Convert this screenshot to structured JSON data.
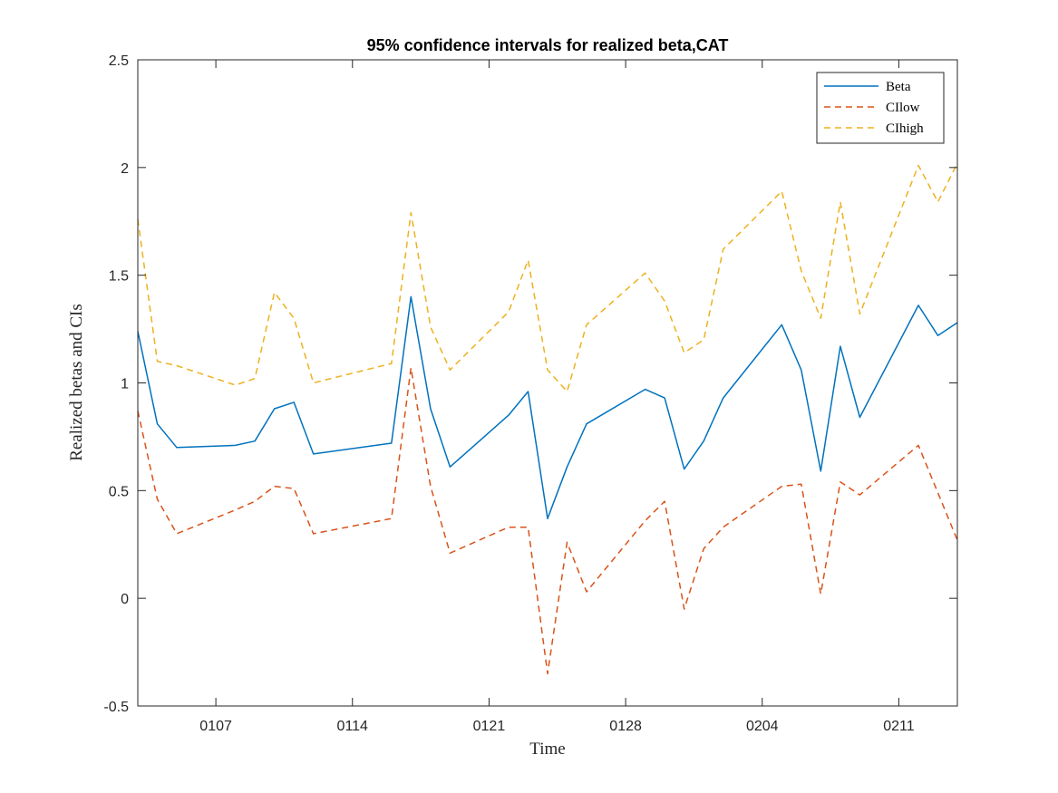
{
  "chart_data": {
    "type": "line",
    "title": "95% confidence intervals for realized beta,CAT",
    "xlabel": "Time",
    "ylabel": "Realized betas and CIs",
    "x": [
      "0103",
      "0104",
      "0105",
      "0108",
      "0109",
      "0110",
      "0111",
      "0112",
      "0116",
      "0117",
      "0118",
      "0119",
      "0122",
      "0123",
      "0124",
      "0125",
      "0126",
      "0129",
      "0130",
      "0131",
      "0201",
      "0202",
      "0205",
      "0206",
      "0207",
      "0208",
      "0209",
      "0212",
      "0213",
      "0214"
    ],
    "x_domain": [
      0,
      42
    ],
    "x_positions": [
      0,
      1,
      2,
      5,
      6,
      7,
      8,
      9,
      13,
      14,
      15,
      16,
      19,
      20,
      21,
      22,
      23,
      26,
      27,
      28,
      29,
      30,
      33,
      34,
      35,
      36,
      37,
      40,
      41,
      42
    ],
    "xticks": [
      {
        "label": "0107",
        "pos": 4
      },
      {
        "label": "0114",
        "pos": 11
      },
      {
        "label": "0121",
        "pos": 18
      },
      {
        "label": "0128",
        "pos": 25
      },
      {
        "label": "0204",
        "pos": 32
      },
      {
        "label": "0211",
        "pos": 39
      }
    ],
    "ylim": [
      -0.5,
      2.5
    ],
    "yticks": [
      -0.5,
      0,
      0.5,
      1,
      1.5,
      2,
      2.5
    ],
    "ytick_labels": [
      "-0.5",
      "0",
      "0.5",
      "1",
      "1.5",
      "2",
      "2.5"
    ],
    "grid": false,
    "legend_position": "top-right",
    "series": [
      {
        "name": "Beta",
        "color": "#0072BD",
        "dash": "solid",
        "values": [
          1.24,
          0.81,
          0.7,
          0.71,
          0.73,
          0.88,
          0.91,
          0.67,
          0.72,
          1.4,
          0.88,
          0.61,
          0.85,
          0.96,
          0.37,
          0.61,
          0.81,
          0.97,
          0.93,
          0.6,
          0.73,
          0.93,
          1.27,
          1.06,
          0.59,
          1.17,
          0.84,
          1.36,
          1.22,
          1.28
        ]
      },
      {
        "name": "CIlow",
        "color": "#D95319",
        "dash": "dashed",
        "values": [
          0.87,
          0.46,
          0.3,
          0.41,
          0.45,
          0.52,
          0.51,
          0.3,
          0.37,
          1.07,
          0.52,
          0.21,
          0.33,
          0.33,
          -0.35,
          0.26,
          0.03,
          0.36,
          0.45,
          -0.05,
          0.23,
          0.33,
          0.52,
          0.53,
          0.02,
          0.54,
          0.48,
          0.71,
          0.49,
          0.27
        ]
      },
      {
        "name": "CIhigh",
        "color": "#EDB120",
        "dash": "dashed",
        "values": [
          1.76,
          1.1,
          1.08,
          0.99,
          1.02,
          1.42,
          1.3,
          1.0,
          1.09,
          1.79,
          1.26,
          1.06,
          1.33,
          1.57,
          1.06,
          0.96,
          1.27,
          1.51,
          1.38,
          1.14,
          1.2,
          1.62,
          1.89,
          1.52,
          1.3,
          1.84,
          1.32,
          2.01,
          1.84,
          2.02
        ]
      }
    ]
  }
}
